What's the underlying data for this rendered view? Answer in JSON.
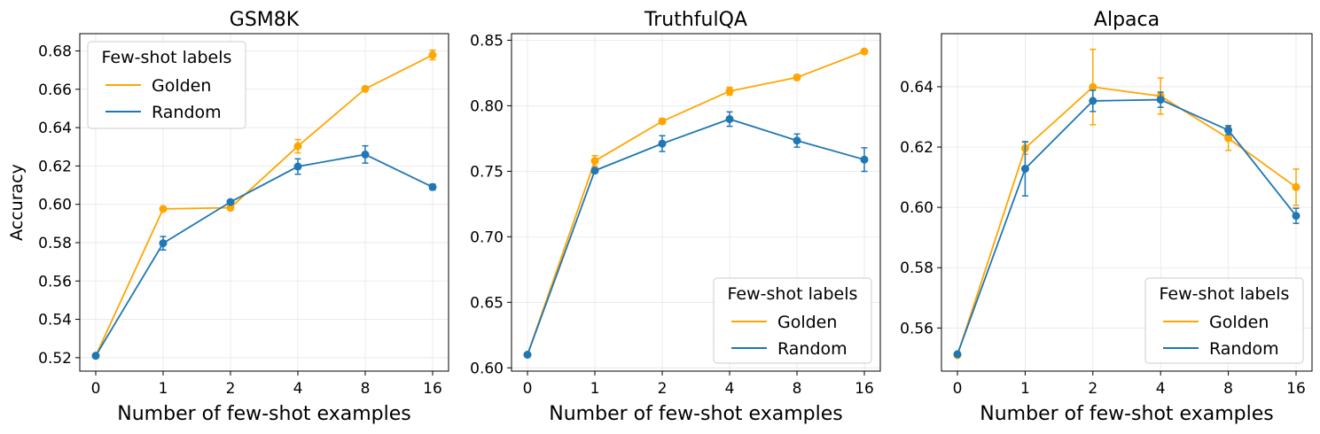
{
  "chart_data": [
    {
      "type": "line",
      "title": "GSM8K",
      "xlabel": "Number of few-shot examples",
      "ylabel": "Accuracy",
      "categories": [
        "0",
        "1",
        "2",
        "4",
        "8",
        "16"
      ],
      "ylim": [
        0.513,
        0.689
      ],
      "yticks": [
        0.52,
        0.54,
        0.56,
        0.58,
        0.6,
        0.62,
        0.64,
        0.66,
        0.68
      ],
      "ytick_labels": [
        "0.52",
        "0.54",
        "0.56",
        "0.58",
        "0.60",
        "0.62",
        "0.64",
        "0.66",
        "0.68"
      ],
      "grid": true,
      "legend": {
        "title": "Few-shot labels",
        "position": "upper-left"
      },
      "series": [
        {
          "name": "Golden",
          "color": "#FFA500",
          "values": [
            0.521,
            0.5976,
            0.5982,
            0.6303,
            0.6602,
            0.6779
          ],
          "errors": [
            0.0,
            0.0005,
            0.001,
            0.0035,
            0.001,
            0.0025
          ]
        },
        {
          "name": "Random",
          "color": "#1F77B4",
          "values": [
            0.521,
            0.5797,
            0.6012,
            0.6197,
            0.626,
            0.609
          ],
          "errors": [
            0.0,
            0.0035,
            0.001,
            0.004,
            0.0045,
            0.0015
          ]
        }
      ]
    },
    {
      "type": "line",
      "title": "TruthfulQA",
      "xlabel": "Number of few-shot examples",
      "ylabel": "",
      "categories": [
        "0",
        "1",
        "2",
        "4",
        "8",
        "16"
      ],
      "ylim": [
        0.5975,
        0.855
      ],
      "yticks": [
        0.6,
        0.65,
        0.7,
        0.75,
        0.8,
        0.85
      ],
      "ytick_labels": [
        "0.60",
        "0.65",
        "0.70",
        "0.75",
        "0.80",
        "0.85"
      ],
      "grid": true,
      "legend": {
        "title": "Few-shot labels",
        "position": "lower-right"
      },
      "series": [
        {
          "name": "Golden",
          "color": "#FFA500",
          "values": [
            0.61,
            0.7579,
            0.7881,
            0.8111,
            0.8216,
            0.8414
          ],
          "errors": [
            0.0,
            0.004,
            0.002,
            0.003,
            0.002,
            0.0015
          ]
        },
        {
          "name": "Random",
          "color": "#1F77B4",
          "values": [
            0.61,
            0.7505,
            0.7711,
            0.7898,
            0.7734,
            0.7589
          ],
          "errors": [
            0.0,
            0.002,
            0.006,
            0.0055,
            0.005,
            0.009
          ]
        }
      ]
    },
    {
      "type": "line",
      "title": "Alpaca",
      "xlabel": "Number of few-shot examples",
      "ylabel": "",
      "categories": [
        "0",
        "1",
        "2",
        "4",
        "8",
        "16"
      ],
      "ylim": [
        0.5457,
        0.6576
      ],
      "yticks": [
        0.56,
        0.58,
        0.6,
        0.62,
        0.64
      ],
      "ytick_labels": [
        "0.56",
        "0.58",
        "0.60",
        "0.62",
        "0.64"
      ],
      "grid": true,
      "legend": {
        "title": "Few-shot labels",
        "position": "lower-right"
      },
      "series": [
        {
          "name": "Golden",
          "color": "#FFA500",
          "values": [
            0.551,
            0.6196,
            0.6399,
            0.6369,
            0.6229,
            0.6067
          ],
          "errors": [
            0.0,
            0.002,
            0.0125,
            0.006,
            0.004,
            0.006
          ]
        },
        {
          "name": "Random",
          "color": "#1F77B4",
          "values": [
            0.5513,
            0.6128,
            0.6353,
            0.6357,
            0.6256,
            0.5972
          ],
          "errors": [
            0.0,
            0.009,
            0.0035,
            0.0025,
            0.0015,
            0.0025
          ]
        }
      ]
    }
  ]
}
